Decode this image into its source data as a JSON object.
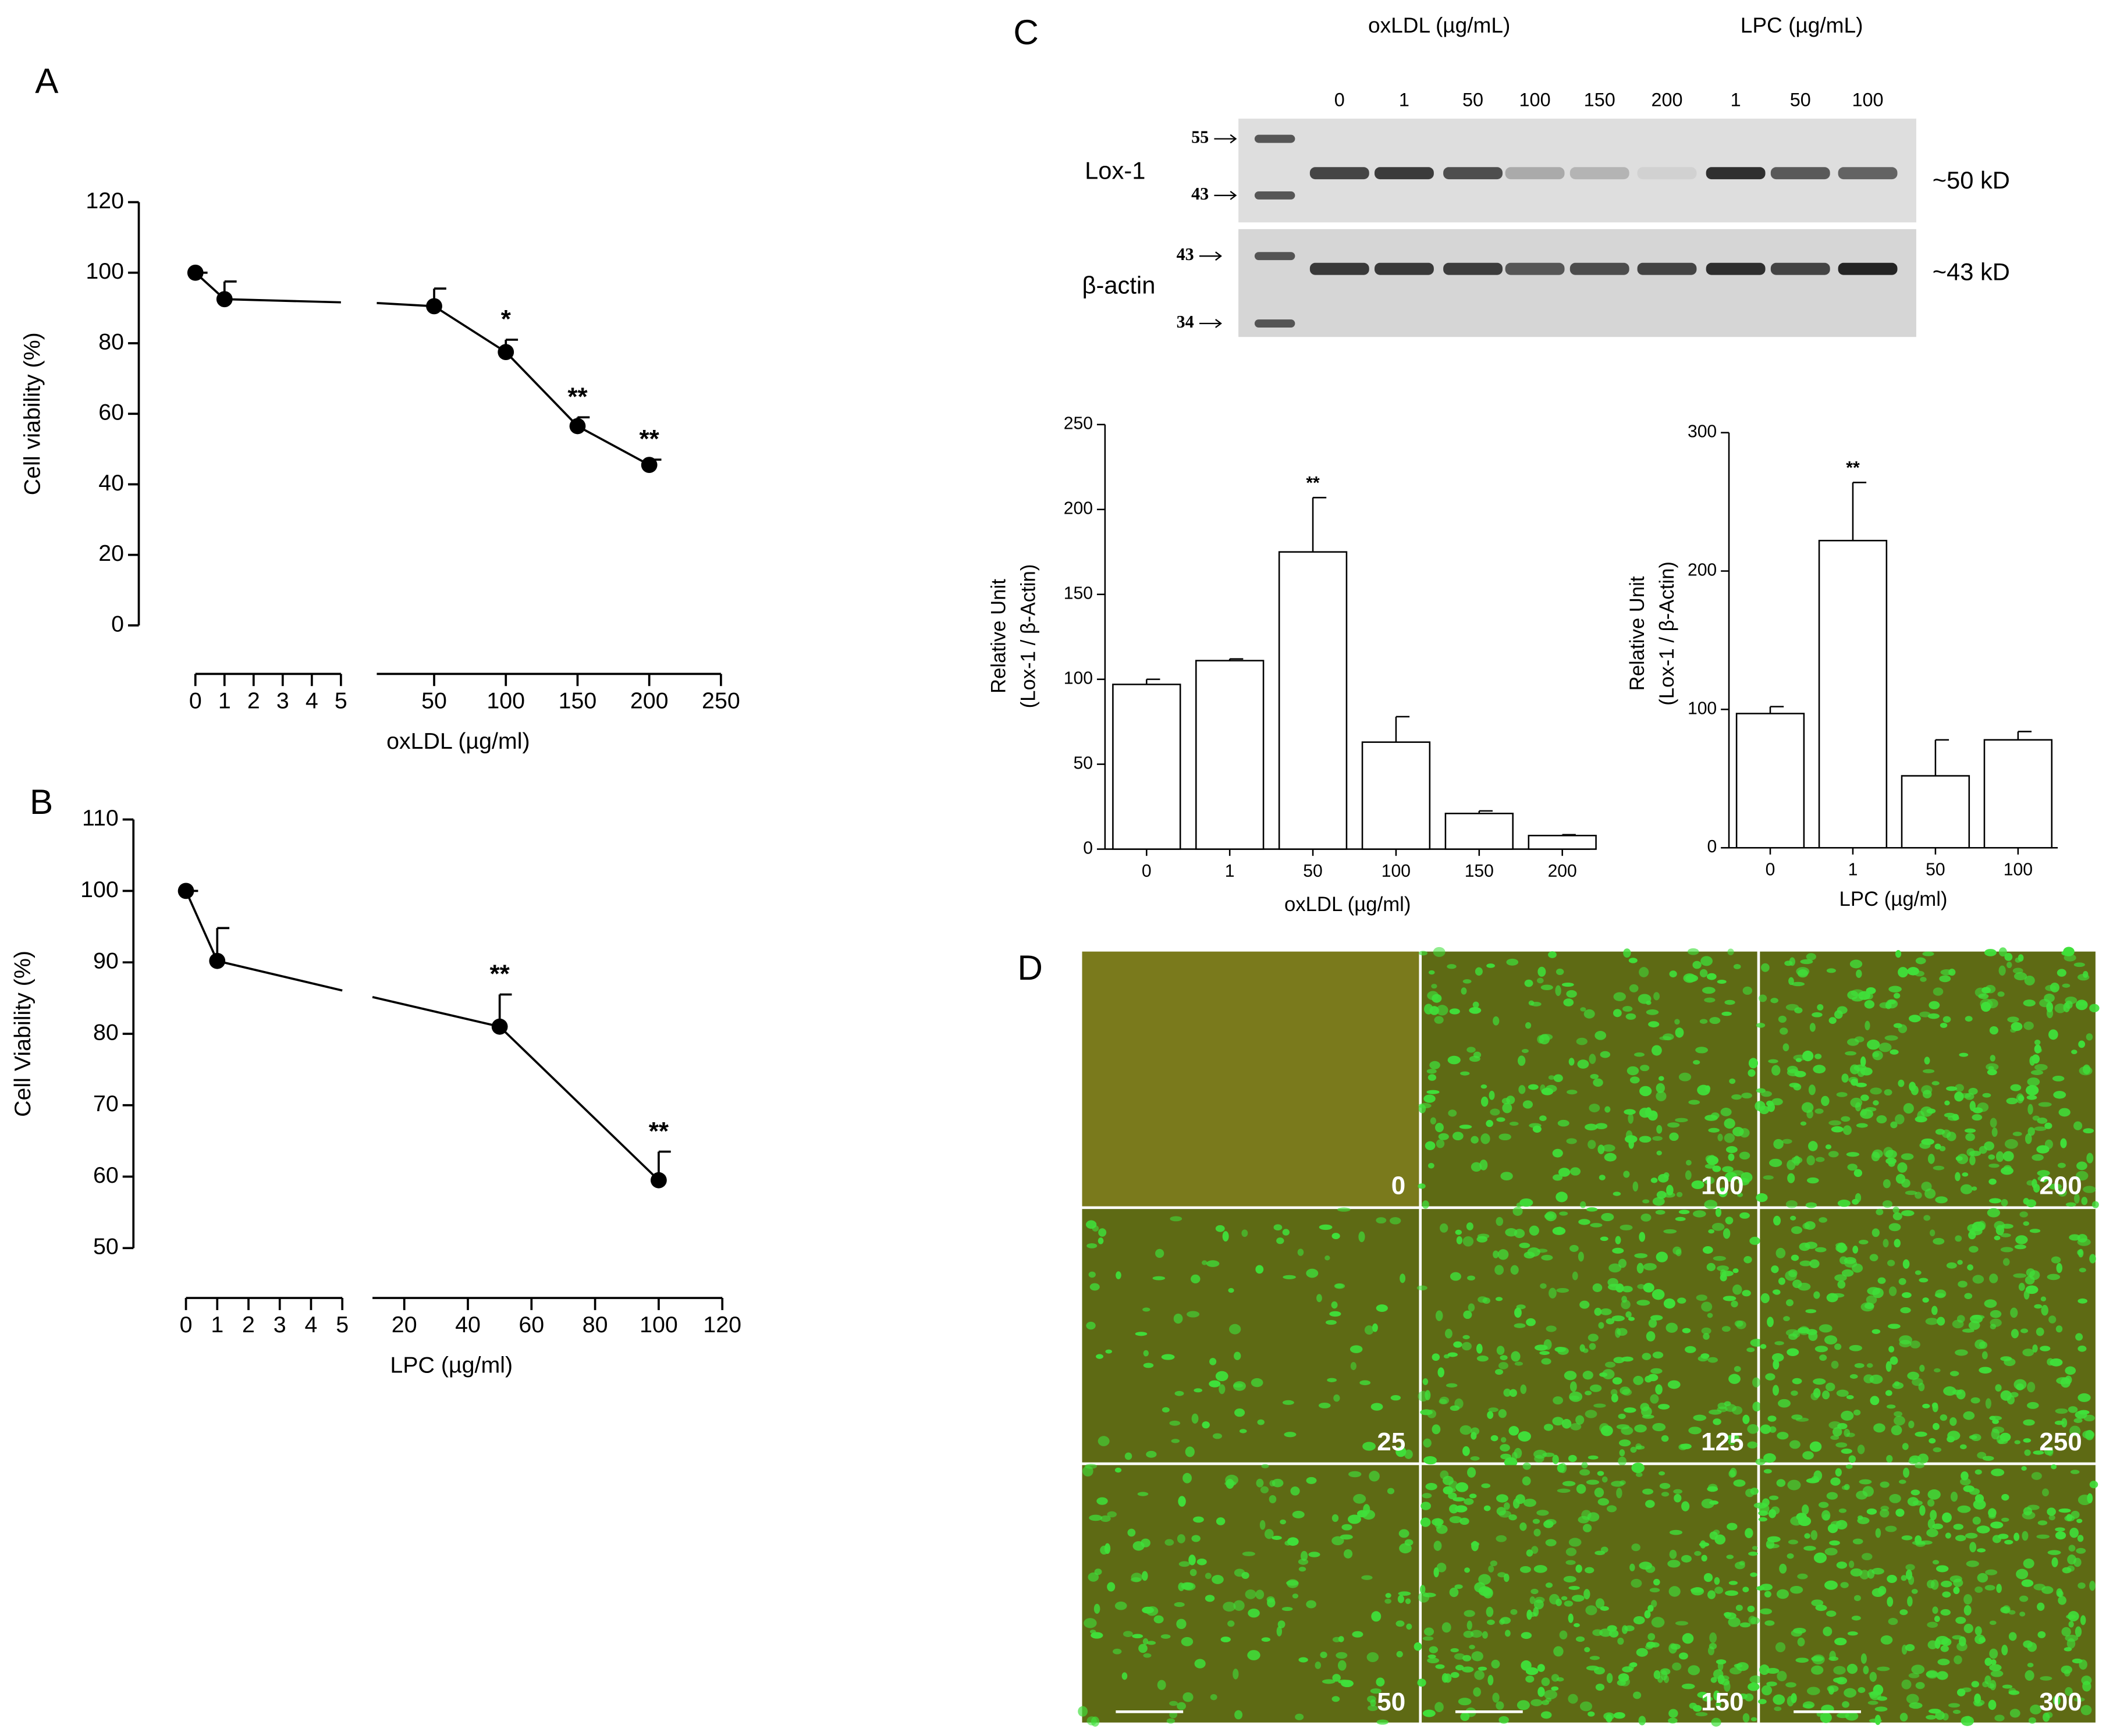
{
  "panel_labels": [
    "A",
    "B",
    "C",
    "D"
  ],
  "chart_data": [
    {
      "type": "line",
      "ylabel": "Cell viability (%)",
      "xlabel": "oxLDL (µg/ml)",
      "x": [
        0,
        1,
        50,
        100,
        150,
        200
      ],
      "values": [
        100,
        92.5,
        90.5,
        77.5,
        56.5,
        45.5
      ],
      "errors": [
        0,
        5,
        5,
        3.5,
        2.5,
        1.5
      ],
      "color": "#000000",
      "annotations": [
        {
          "x": 100,
          "text": "*"
        },
        {
          "x": 150,
          "text": "**"
        },
        {
          "x": 200,
          "text": "**"
        }
      ],
      "ylim": [
        0,
        120
      ],
      "yticks": [
        0,
        20,
        40,
        60,
        80,
        100,
        120
      ],
      "xaxis_segments": [
        {
          "xlim": [
            0,
            5
          ],
          "xticks": [
            0,
            1,
            2,
            3,
            4,
            5
          ]
        },
        {
          "xlim": [
            10,
            250
          ],
          "xticks": [
            50,
            100,
            150,
            200,
            250
          ]
        }
      ]
    },
    {
      "type": "line",
      "ylabel": "Cell Viability (%)",
      "xlabel": "LPC (µg/ml)",
      "x": [
        0,
        1,
        50,
        100
      ],
      "values": [
        100,
        90.2,
        81,
        59.5
      ],
      "errors": [
        0,
        4.6,
        4.5,
        4
      ],
      "color": "#000000",
      "annotations": [
        {
          "x": 50,
          "text": "**"
        },
        {
          "x": 100,
          "text": "**"
        }
      ],
      "ylim": [
        50,
        110
      ],
      "yticks": [
        50,
        60,
        70,
        80,
        90,
        100,
        110
      ],
      "xaxis_segments": [
        {
          "xlim": [
            0,
            5
          ],
          "xticks": [
            0,
            1,
            2,
            3,
            4,
            5
          ]
        },
        {
          "xlim": [
            10,
            120
          ],
          "xticks": [
            20,
            40,
            60,
            80,
            100,
            120
          ]
        }
      ]
    },
    {
      "type": "bar",
      "ylabel": [
        "Relative Unit",
        "(Lox-1 / β-Actin)"
      ],
      "xlabel": "oxLDL (µg/ml)",
      "categories": [
        "0",
        "1",
        "50",
        "100",
        "150",
        "200"
      ],
      "values": [
        97,
        111,
        175,
        63,
        21,
        8
      ],
      "errors": [
        3,
        1,
        32,
        15,
        1.5,
        0.5
      ],
      "color": "#ffffff",
      "annotations": [
        {
          "category": "50",
          "text": "**"
        }
      ],
      "ylim": [
        0,
        250
      ],
      "yticks": [
        0,
        50,
        100,
        150,
        200,
        250
      ]
    },
    {
      "type": "bar",
      "ylabel": [
        "Relative Unit",
        "(Lox-1 / β-Actin)"
      ],
      "xlabel": "LPC (µg/ml)",
      "categories": [
        "0",
        "1",
        "50",
        "100"
      ],
      "values": [
        97,
        222,
        52,
        78
      ],
      "errors": [
        5,
        42,
        26,
        6
      ],
      "color": "#ffffff",
      "annotations": [
        {
          "category": "1",
          "text": "**"
        }
      ],
      "ylim": [
        0,
        300
      ],
      "yticks": [
        0,
        100,
        200,
        300
      ]
    }
  ],
  "blot": {
    "group_labels": [
      "oxLDL (µg/mL)",
      "LPC (µg/mL)"
    ],
    "lane_labels": [
      "0",
      "1",
      "50",
      "100",
      "150",
      "200",
      "1",
      "50",
      "100"
    ],
    "marker_labels": [
      "55",
      "43",
      "43",
      "34"
    ],
    "row_labels": [
      "Lox-1",
      "β-actin"
    ],
    "size_labels": [
      "~50 kD",
      "~43 kD"
    ]
  },
  "micrographs": {
    "labels": [
      "0",
      "100",
      "200",
      "25",
      "125",
      "250",
      "50",
      "150",
      "300"
    ]
  }
}
